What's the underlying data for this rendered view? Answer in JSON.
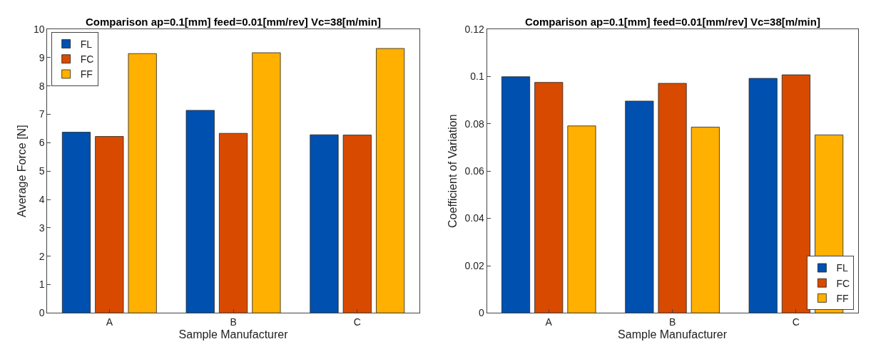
{
  "chart_data": [
    {
      "type": "bar",
      "title": "Comparison ap=0.1[mm] feed=0.01[mm/rev] Vc=38[m/min]",
      "xlabel": "Sample Manufacturer",
      "ylabel": "Average Force [N]",
      "categories": [
        "A",
        "B",
        "C"
      ],
      "series": [
        {
          "name": "FL",
          "color": "#0050b0",
          "values": [
            6.37,
            7.14,
            6.28
          ]
        },
        {
          "name": "FC",
          "color": "#d84a00",
          "values": [
            6.22,
            6.33,
            6.27
          ]
        },
        {
          "name": "FF",
          "color": "#ffb000",
          "values": [
            9.14,
            9.17,
            9.32
          ]
        }
      ],
      "ylim": [
        0,
        10
      ],
      "yticks": [
        0,
        1,
        2,
        3,
        4,
        5,
        6,
        7,
        8,
        9,
        10
      ],
      "legend": "top left"
    },
    {
      "type": "bar",
      "title": "Comparison ap=0.1[mm] feed=0.01[mm/rev] Vc=38[m/min]",
      "xlabel": "Sample Manufacturer",
      "ylabel": "Coefficient of Variation",
      "categories": [
        "A",
        "B",
        "C"
      ],
      "series": [
        {
          "name": "FL",
          "color": "#0050b0",
          "values": [
            0.0999,
            0.0896,
            0.0992
          ]
        },
        {
          "name": "FC",
          "color": "#d84a00",
          "values": [
            0.0975,
            0.0971,
            0.1007
          ]
        },
        {
          "name": "FF",
          "color": "#ffb000",
          "values": [
            0.0791,
            0.0786,
            0.0753
          ]
        }
      ],
      "ylim": [
        0,
        0.12
      ],
      "yticks": [
        0,
        0.02,
        0.04,
        0.06,
        0.08,
        0.1,
        0.12
      ],
      "legend": "bottom right"
    }
  ]
}
